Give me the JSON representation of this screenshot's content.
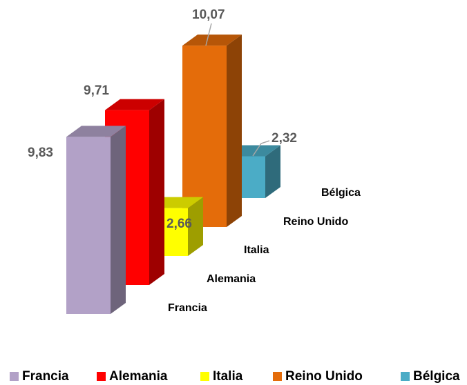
{
  "chart_data": {
    "type": "bar3d",
    "categories": [
      "Francia",
      "Alemania",
      "Italia",
      "Reino Unido",
      "Bélgica"
    ],
    "values": [
      9.83,
      9.71,
      2.66,
      10.07,
      2.32
    ],
    "value_labels": [
      "9,83",
      "9,71",
      "2,66",
      "10,07",
      "2,32"
    ],
    "colors": [
      "#b2a1c7",
      "#ff0000",
      "#ffff00",
      "#e46c0a",
      "#4bacc6"
    ]
  }
}
